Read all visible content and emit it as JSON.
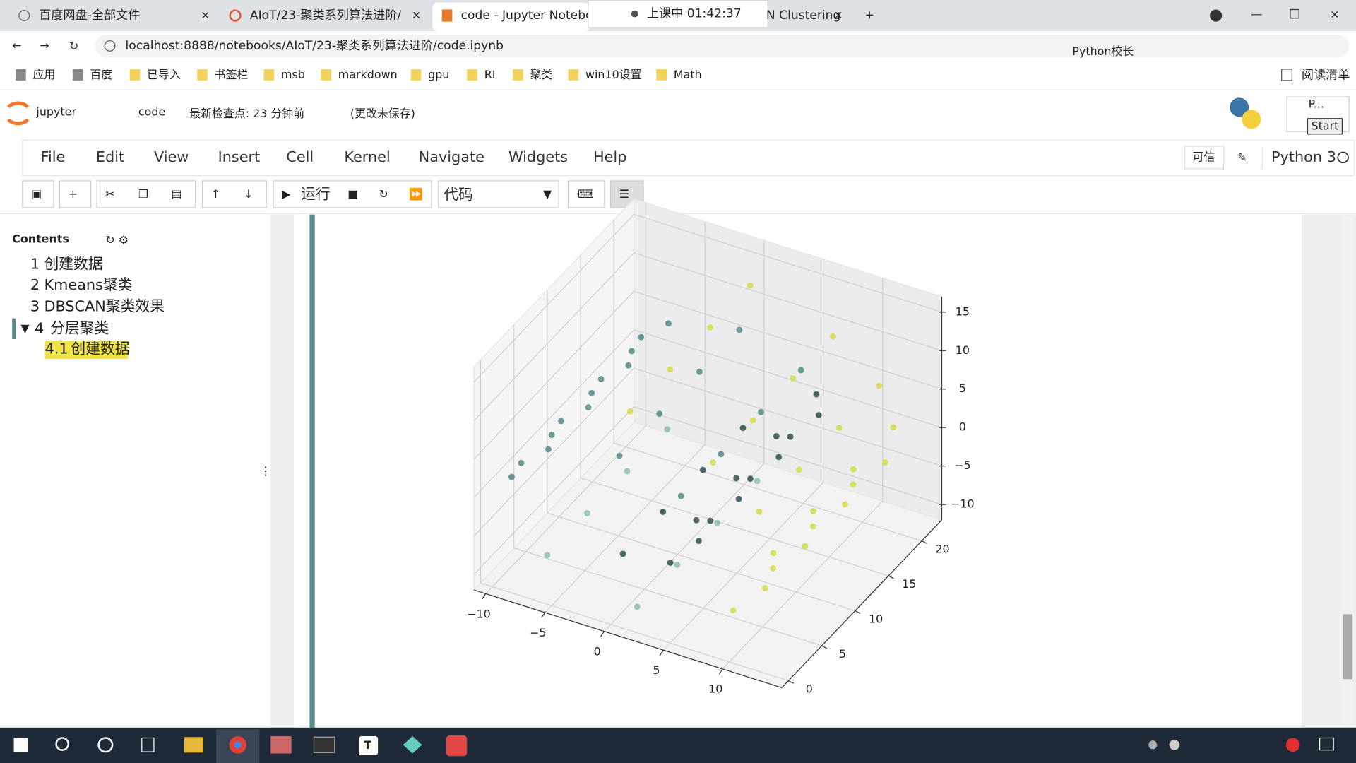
{
  "browser": {
    "tabs": [
      "百度网盘-全部文件",
      "AIoT/23-聚类系列算法进阶/",
      "code - Jupyter Notebook",
      "N Clustering"
    ],
    "overlay": "上课中 01:42:37",
    "url": "localhost:8888/notebooks/AIoT/23-聚类系列算法进阶/code.ipynb",
    "bookmarks": [
      "应用",
      "百度",
      "已导入",
      "书签栏",
      "msb",
      "markdown",
      "gpu",
      "RI",
      "聚类",
      "win10设置",
      "Math"
    ],
    "reading_list": "阅读清单",
    "watermark": "Python校长"
  },
  "jupyter": {
    "logo": "jupyter",
    "notebook": "code",
    "checkpoint": "最新检查点: 23 分钟前",
    "unsaved": "(更改未保存)",
    "menu": [
      "File",
      "Edit",
      "View",
      "Insert",
      "Cell",
      "Kernel",
      "Navigate",
      "Widgets",
      "Help"
    ],
    "trusted": "可信",
    "kernel": "Python 3",
    "run": "运行",
    "cell_type": "代码",
    "start": "Start",
    "panel": "P..."
  },
  "toc": {
    "title": "Contents",
    "items": [
      {
        "num": "1",
        "text": "创建数据"
      },
      {
        "num": "2",
        "text": "Kmeans聚类"
      },
      {
        "num": "3",
        "text": "DBSCAN聚类效果"
      },
      {
        "num": "4",
        "text": "分层聚类"
      },
      {
        "num": "4.1",
        "text": "创建数据"
      }
    ]
  },
  "chart_data": {
    "type": "scatter3d",
    "xlim": [
      -11,
      15
    ],
    "ylim": [
      -1,
      23
    ],
    "zlim": [
      -12,
      17
    ],
    "xticks": [
      {
        "value": -10,
        "label": "−10"
      },
      {
        "value": -5,
        "label": "−5"
      },
      0,
      5,
      10
    ],
    "yticks": [
      0,
      5,
      10,
      15,
      20
    ],
    "zticks": [
      {
        "value": -10,
        "label": "−10"
      },
      {
        "value": -5,
        "label": "−5"
      },
      0,
      5,
      10,
      15
    ],
    "series": [
      {
        "color": "#2f4c4d",
        "x": [
          -0.1,
          3.9,
          6.3,
          6.1,
          -0.1,
          3.9,
          6.3,
          6.1,
          -0.1,
          3.9,
          6.3,
          6.1,
          -0.1,
          3.9,
          6.3,
          6.1
        ],
        "y": [
          2,
          2,
          2,
          2,
          8,
          8,
          8,
          8,
          14,
          14,
          14,
          14,
          20,
          20,
          20,
          20
        ],
        "z": [
          -4.7,
          -3.9,
          0.1,
          2.7,
          -4.7,
          -3.9,
          0.1,
          2.7,
          -4.7,
          -3.9,
          0.1,
          2.7,
          -4.7,
          -3.9,
          0.1,
          2.7
        ]
      },
      {
        "color": "#4f8a87",
        "x": [
          4.8,
          -0.4,
          -6.4,
          -8.7,
          -9.5,
          4.8,
          -0.4,
          -6.4,
          -8.7,
          -9.5,
          4.8,
          -0.4,
          -6.4,
          -8.7,
          -9.5,
          4.8,
          -0.4,
          -6.4,
          -8.7,
          -9.5
        ],
        "y": [
          2,
          2,
          2,
          2,
          2,
          8,
          8,
          8,
          8,
          8,
          14,
          14,
          14,
          14,
          14,
          20,
          20,
          20,
          20,
          20
        ],
        "z": [
          5.2,
          7.9,
          5.8,
          2.9,
          0.7,
          5.2,
          7.9,
          5.8,
          2.9,
          0.7,
          5.2,
          7.9,
          5.8,
          2.9,
          0.7,
          5.2,
          7.9,
          5.8,
          2.9,
          0.7
        ]
      },
      {
        "color": "#8dbdb3",
        "x": [
          -6.5,
          1.1,
          -6.5,
          1.1,
          -6.5,
          1.1,
          -6.5,
          1.1
        ],
        "y": [
          2,
          2,
          8,
          8,
          14,
          14,
          20,
          20
        ],
        "z": [
          -8.0,
          -11.0,
          -8.0,
          -11.0,
          -8.0,
          -11.0,
          -8.0,
          -11.0
        ]
      },
      {
        "color": "#d5dc4a",
        "x": [
          9.2,
          11.9,
          12.6,
          11.4,
          7.5,
          0.5,
          9.2,
          11.9,
          12.6,
          11.4,
          7.5,
          0.5,
          9.2,
          11.9,
          12.6,
          11.4,
          7.5,
          0.5,
          9.2,
          11.9,
          12.6,
          11.4,
          7.5,
          0.5
        ],
        "y": [
          2,
          2,
          2,
          2,
          2,
          2,
          8,
          8,
          8,
          8,
          8,
          8,
          14,
          14,
          14,
          14,
          14,
          14,
          20,
          20,
          20,
          20,
          20,
          20
        ],
        "z": [
          -7.5,
          -3.3,
          1.6,
          6.4,
          10.9,
          14.1,
          -7.5,
          -3.3,
          1.6,
          6.4,
          10.9,
          14.1,
          -7.5,
          -3.3,
          1.6,
          6.4,
          10.9,
          14.1,
          -7.5,
          -3.3,
          1.6,
          6.4,
          10.9,
          14.1
        ]
      }
    ]
  }
}
